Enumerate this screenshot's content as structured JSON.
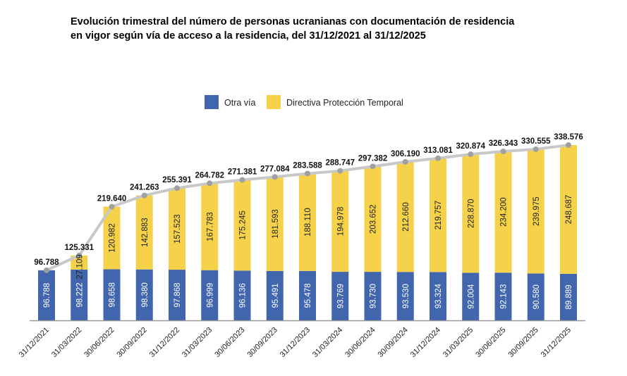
{
  "chart_data": {
    "type": "bar",
    "stacked": true,
    "title_lines": [
      "Evolución trimestral del número de personas ucranianas con documentación de residencia",
      "en vigor según vía de acceso a la residencia, del 31/12/2021 al 31/12/2025"
    ],
    "categories": [
      "31/12/2021",
      "31/03/2022",
      "30/06/2022",
      "30/09/2022",
      "31/12/2022",
      "31/03/2023",
      "30/06/2023",
      "30/09/2023",
      "31/12/2023",
      "31/03/2024",
      "30/06/2024",
      "30/09/2024",
      "31/12/2024",
      "31/03/2025",
      "30/06/2025",
      "30/09/2025",
      "31/12/2025"
    ],
    "series": [
      {
        "name": "Otra vía",
        "color": "#4166AD",
        "values": [
          96788,
          98222,
          98658,
          98380,
          97868,
          96999,
          96136,
          95491,
          95478,
          93769,
          93730,
          93530,
          93324,
          92004,
          92143,
          90580,
          89889
        ],
        "labels": [
          "96.788",
          "98.222",
          "98.658",
          "98.380",
          "97.868",
          "96.999",
          "96.136",
          "95.491",
          "95.478",
          "93.769",
          "93.730",
          "93.530",
          "93.324",
          "92.004",
          "92.143",
          "90.580",
          "89.889"
        ]
      },
      {
        "name": "Directiva Protección Temporal",
        "color": "#F6D24A",
        "values": [
          0,
          27109,
          120982,
          142883,
          157523,
          167783,
          175245,
          181593,
          188110,
          194978,
          203652,
          212660,
          219757,
          228870,
          234200,
          239975,
          248687
        ],
        "labels": [
          "",
          "27.109",
          "120.982",
          "142.883",
          "157.523",
          "167.783",
          "175.245",
          "181.593",
          "188.110",
          "194.978",
          "203.652",
          "212.660",
          "219.757",
          "228.870",
          "234.200",
          "239.975",
          "248.687"
        ]
      }
    ],
    "totals": {
      "line_color": "#C8C8C8",
      "marker_color": "#A0A0A0",
      "values": [
        96788,
        125331,
        219640,
        241263,
        255391,
        264782,
        271381,
        277084,
        283588,
        288747,
        297382,
        306190,
        313081,
        320874,
        326343,
        330555,
        338576
      ],
      "labels": [
        "96.788",
        "125.331",
        "219.640",
        "241.263",
        "255.391",
        "264.782",
        "271.381",
        "277.084",
        "283.588",
        "288.747",
        "297.382",
        "306.190",
        "313.081",
        "320.874",
        "326.343",
        "330.555",
        "338.576"
      ]
    },
    "ylim": [
      0,
      340000
    ],
    "grid": false,
    "legend": "top-center"
  }
}
